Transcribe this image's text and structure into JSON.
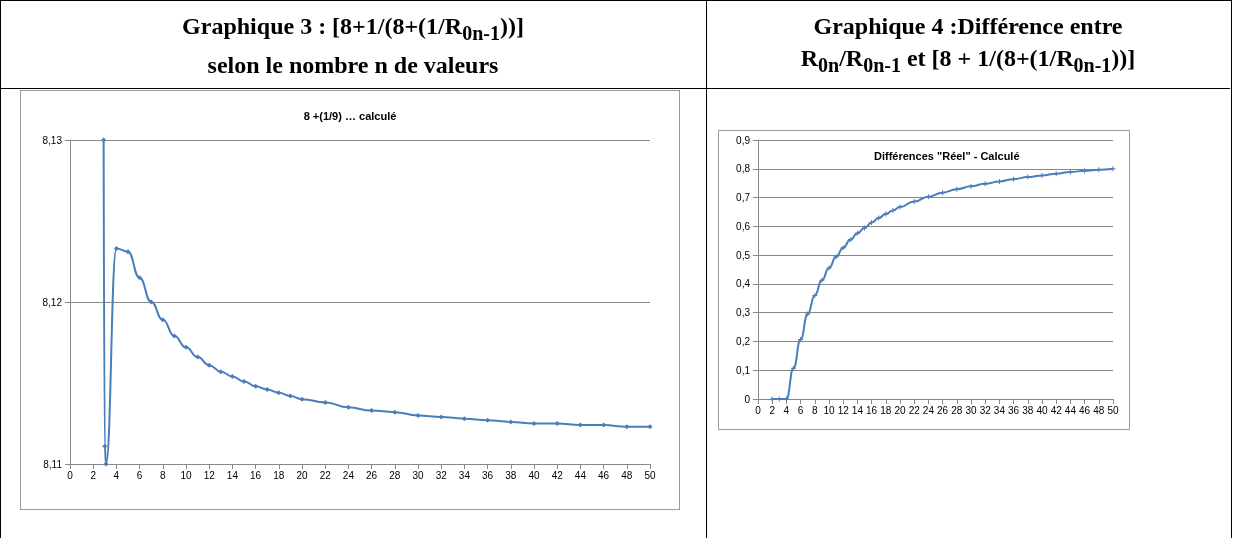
{
  "chart_data": [
    {
      "type": "line",
      "title": "Graphique 3 : [8+1/(8+(1/R$_{0n-1}$))]\nselon le nombre n de valeurs",
      "subtitle": "8 +(1/9) … calculé",
      "color": "#4a7ebb",
      "marker": "diamond",
      "grid": "y",
      "x": [
        2.9,
        3,
        3.1,
        4,
        5,
        6,
        7,
        8,
        9,
        10,
        11,
        12,
        13,
        14,
        15,
        16,
        17,
        18,
        19,
        20,
        22,
        24,
        26,
        28,
        30,
        32,
        34,
        36,
        38,
        40,
        42,
        44,
        46,
        48,
        50
      ],
      "values": [
        8.13,
        8.1111,
        8.11,
        8.1233,
        8.1231,
        8.1215,
        8.12,
        8.1189,
        8.1179,
        8.1172,
        8.1166,
        8.1161,
        8.1157,
        8.1154,
        8.1151,
        8.1148,
        8.1146,
        8.1144,
        8.1142,
        8.114,
        8.1138,
        8.1135,
        8.1133,
        8.1132,
        8.113,
        8.1129,
        8.1128,
        8.1127,
        8.1126,
        8.1125,
        8.1125,
        8.1124,
        8.1124,
        8.1123,
        8.1123
      ],
      "xlim": [
        0,
        50
      ],
      "xticks": [
        0,
        2,
        4,
        6,
        8,
        10,
        12,
        14,
        16,
        18,
        20,
        22,
        24,
        26,
        28,
        30,
        32,
        34,
        36,
        38,
        40,
        42,
        44,
        46,
        48,
        50
      ],
      "ylim": [
        8.11,
        8.13
      ],
      "yticks": [
        {
          "value": 8.11,
          "label": "8,11"
        },
        {
          "value": 8.12,
          "label": "8,12"
        },
        {
          "value": 8.13,
          "label": "8,13"
        }
      ]
    },
    {
      "type": "line",
      "title": "Graphique 4 :Différence entre\nR$_{0n}$/R$_{0n-1}$ et [8 + 1/(8+(1/R$_{0n-1}$))]",
      "subtitle": "Différences \"Réel\" - Calculé",
      "color": "#4a7ebb",
      "marker": "cross",
      "grid": "y",
      "x": [
        2,
        3,
        4,
        5,
        6,
        7,
        8,
        9,
        10,
        11,
        12,
        13,
        14,
        15,
        16,
        17,
        18,
        19,
        20,
        22,
        24,
        26,
        28,
        30,
        32,
        34,
        36,
        38,
        40,
        42,
        44,
        46,
        48,
        50
      ],
      "values": [
        0,
        0,
        0,
        0.107,
        0.207,
        0.295,
        0.36,
        0.413,
        0.455,
        0.494,
        0.526,
        0.553,
        0.576,
        0.594,
        0.613,
        0.629,
        0.643,
        0.655,
        0.667,
        0.686,
        0.703,
        0.717,
        0.729,
        0.739,
        0.748,
        0.756,
        0.764,
        0.771,
        0.777,
        0.783,
        0.789,
        0.793,
        0.797,
        0.8
      ],
      "xlim": [
        0,
        50
      ],
      "xticks": [
        0,
        2,
        4,
        6,
        8,
        10,
        12,
        14,
        16,
        18,
        20,
        22,
        24,
        26,
        28,
        30,
        32,
        34,
        36,
        38,
        40,
        42,
        44,
        46,
        48,
        50
      ],
      "ylim": [
        0,
        0.9
      ],
      "yticks": [
        0,
        {
          "value": 0.1,
          "label": "0,1"
        },
        {
          "value": 0.2,
          "label": "0,2"
        },
        {
          "value": 0.3,
          "label": "0,3"
        },
        {
          "value": 0.4,
          "label": "0,4"
        },
        {
          "value": 0.5,
          "label": "0,5"
        },
        {
          "value": 0.6,
          "label": "0,6"
        },
        {
          "value": 0.7,
          "label": "0,7"
        },
        {
          "value": 0.8,
          "label": "0,8"
        },
        {
          "value": 0.9,
          "label": "0,9"
        }
      ]
    }
  ]
}
